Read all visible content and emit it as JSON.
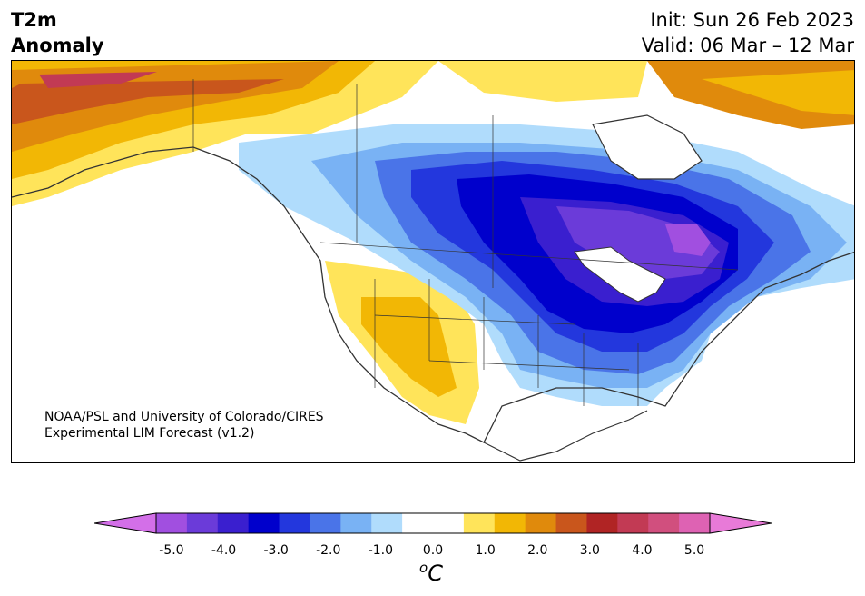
{
  "title": {
    "line1": "T2m",
    "line2": "Anomaly"
  },
  "init": "Init: Sun 26 Feb 2023",
  "valid": "Valid: 06 Mar – 12 Mar",
  "credit": {
    "line1": "NOAA/PSL and University of Colorado/CIRES",
    "line2": "Experimental LIM Forecast (v1.2)"
  },
  "colorbar": {
    "unit_base": "C",
    "unit_sup": "o",
    "ticks": [
      "-5.0",
      "-4.0",
      "-3.0",
      "-2.0",
      "-1.0",
      "0.0",
      "1.0",
      "2.0",
      "3.0",
      "4.0",
      "5.0"
    ],
    "under_color": "#d36fe8",
    "over_color": "#e87ad8",
    "colors": [
      "#a14fe0",
      "#6b3bd9",
      "#3a1fcf",
      "#0000cc",
      "#2337dd",
      "#4a74e8",
      "#79b2f4",
      "#b0dcfc",
      "#ffffff",
      "#ffffff",
      "#ffe45a",
      "#f2b705",
      "#e08a0c",
      "#c9561c",
      "#b02424",
      "#c23a54",
      "#d14f7e",
      "#de62b3"
    ]
  }
}
